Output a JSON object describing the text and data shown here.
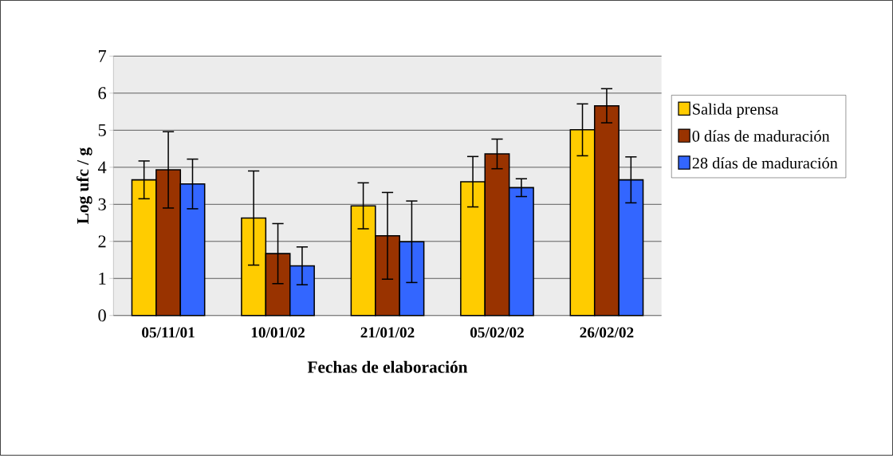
{
  "chart_data": {
    "type": "bar",
    "xlabel": "Fechas de elaboración",
    "ylabel": "Log ufc / g",
    "categories": [
      "05/11/01",
      "10/01/02",
      "21/01/02",
      "05/02/02",
      "26/02/02"
    ],
    "series": [
      {
        "name": "Salida prensa",
        "color": "#ffcc00",
        "values": [
          3.66,
          2.63,
          2.96,
          3.61,
          5.01
        ],
        "errors": [
          0.51,
          1.27,
          0.62,
          0.68,
          0.7
        ]
      },
      {
        "name": "0 días de maduración",
        "color": "#993300",
        "values": [
          3.93,
          1.67,
          2.15,
          4.36,
          5.66
        ],
        "errors": [
          1.03,
          0.81,
          1.17,
          0.4,
          0.46
        ]
      },
      {
        "name": "28 días de maduración",
        "color": "#3366ff",
        "values": [
          3.55,
          1.34,
          1.99,
          3.45,
          3.66
        ],
        "errors": [
          0.67,
          0.51,
          1.1,
          0.24,
          0.62
        ]
      }
    ],
    "ylim": [
      0,
      7
    ],
    "yticks": [
      0,
      1,
      2,
      3,
      4,
      5,
      6,
      7
    ],
    "grid": "y",
    "legend": "right"
  }
}
